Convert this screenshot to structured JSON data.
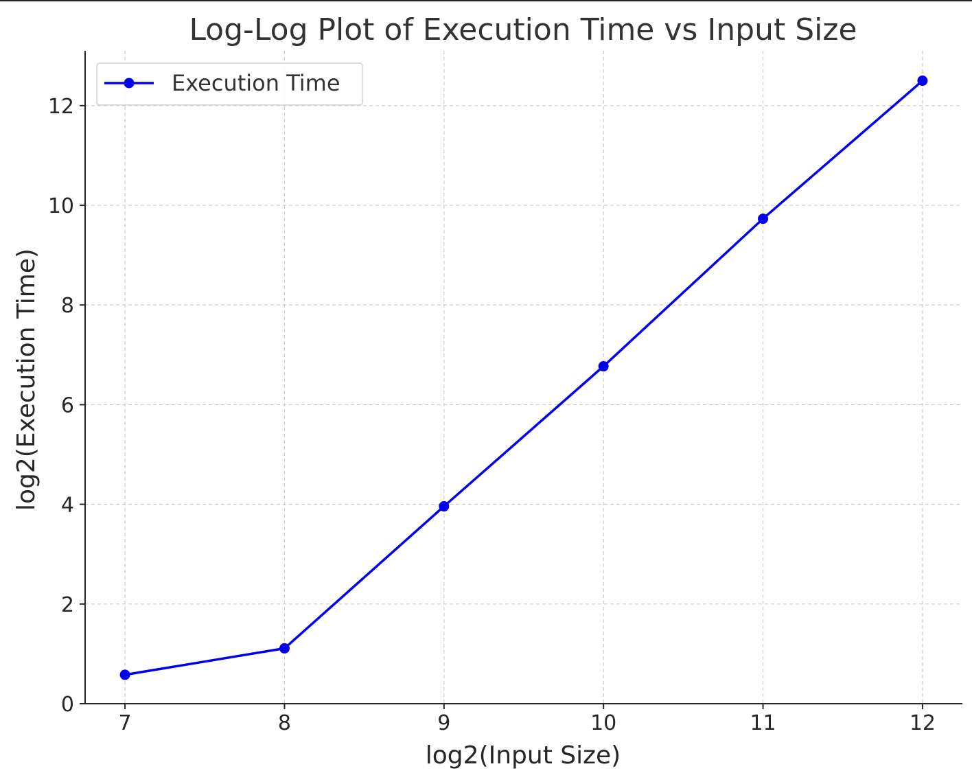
{
  "chart_data": {
    "type": "line",
    "title": "Log-Log Plot of Execution Time vs Input Size",
    "xlabel": "log2(Input Size)",
    "ylabel": "log2(Execution Time)",
    "x": [
      7,
      8,
      9,
      10,
      11,
      12
    ],
    "xlim": [
      6.75,
      12.25
    ],
    "ylim": [
      0,
      13.1
    ],
    "xticks": [
      7,
      8,
      9,
      10,
      11,
      12
    ],
    "yticks": [
      0,
      2,
      4,
      6,
      8,
      10,
      12
    ],
    "grid": true,
    "legend_position": "top-left",
    "series": [
      {
        "name": "Execution Time",
        "color": "#0000ee",
        "marker": "circle",
        "values": [
          0.58,
          1.11,
          3.96,
          6.77,
          9.73,
          12.5
        ]
      }
    ]
  }
}
